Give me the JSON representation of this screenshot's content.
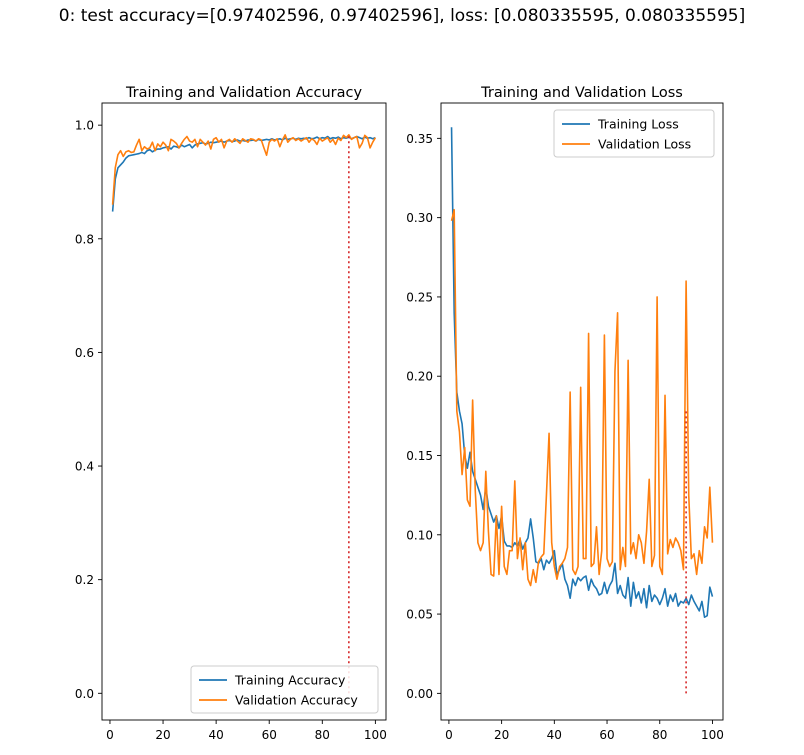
{
  "suptitle": "0: test accuracy=[0.97402596, 0.97402596], loss: [0.080335595, 0.080335595]",
  "colors": {
    "train": "#1f77b4",
    "val": "#ff7f0e",
    "marker": "#d62728"
  },
  "chart_data": [
    {
      "type": "line",
      "title": "Training and Validation Accuracy",
      "xlim": [
        -3,
        104
      ],
      "ylim": [
        -0.047,
        1.039
      ],
      "xticks": [
        0,
        20,
        40,
        60,
        80,
        100
      ],
      "xtick_labels": [
        "0",
        "20",
        "40",
        "60",
        "80",
        "100"
      ],
      "yticks": [
        0.0,
        0.2,
        0.4,
        0.6,
        0.8,
        1.0
      ],
      "ytick_labels": [
        "0.0",
        "0.2",
        "0.4",
        "0.6",
        "0.8",
        "1.0"
      ],
      "grid": false,
      "legend_position": "lower-right",
      "vline": {
        "x": 90,
        "y_from": 0.0,
        "y_to": 0.983,
        "style": "dotted"
      },
      "series": [
        {
          "name": "Training Accuracy",
          "color": "#1f77b4",
          "x": [
            1,
            2,
            3,
            4,
            5,
            6,
            7,
            8,
            9,
            10,
            11,
            12,
            13,
            14,
            15,
            16,
            17,
            18,
            19,
            20,
            21,
            22,
            23,
            24,
            25,
            26,
            27,
            28,
            29,
            30,
            31,
            32,
            33,
            34,
            35,
            36,
            37,
            38,
            39,
            40,
            41,
            42,
            43,
            44,
            45,
            46,
            47,
            48,
            49,
            50,
            51,
            52,
            53,
            54,
            55,
            56,
            57,
            58,
            59,
            60,
            61,
            62,
            63,
            64,
            65,
            66,
            67,
            68,
            69,
            70,
            71,
            72,
            73,
            74,
            75,
            76,
            77,
            78,
            79,
            80,
            81,
            82,
            83,
            84,
            85,
            86,
            87,
            88,
            89,
            90,
            91,
            92,
            93,
            94,
            95,
            96,
            97,
            98,
            99,
            100
          ],
          "values": [
            0.848,
            0.905,
            0.925,
            0.93,
            0.935,
            0.942,
            0.946,
            0.947,
            0.948,
            0.949,
            0.95,
            0.952,
            0.95,
            0.955,
            0.957,
            0.953,
            0.956,
            0.958,
            0.958,
            0.96,
            0.961,
            0.962,
            0.958,
            0.963,
            0.962,
            0.96,
            0.965,
            0.962,
            0.964,
            0.966,
            0.96,
            0.965,
            0.967,
            0.968,
            0.969,
            0.967,
            0.968,
            0.97,
            0.969,
            0.97,
            0.971,
            0.972,
            0.97,
            0.972,
            0.973,
            0.971,
            0.972,
            0.974,
            0.972,
            0.973,
            0.972,
            0.974,
            0.973,
            0.974,
            0.972,
            0.975,
            0.973,
            0.974,
            0.975,
            0.974,
            0.976,
            0.974,
            0.975,
            0.976,
            0.974,
            0.977,
            0.975,
            0.976,
            0.977,
            0.975,
            0.977,
            0.976,
            0.977,
            0.976,
            0.978,
            0.976,
            0.977,
            0.979,
            0.976,
            0.978,
            0.977,
            0.98,
            0.976,
            0.978,
            0.977,
            0.979,
            0.976,
            0.978,
            0.977,
            0.979,
            0.976,
            0.978,
            0.98,
            0.978,
            0.976,
            0.979,
            0.977,
            0.978,
            0.976,
            0.978
          ]
        },
        {
          "name": "Validation Accuracy",
          "color": "#ff7f0e",
          "x": [
            1,
            2,
            3,
            4,
            5,
            6,
            7,
            8,
            9,
            10,
            11,
            12,
            13,
            14,
            15,
            16,
            17,
            18,
            19,
            20,
            21,
            22,
            23,
            24,
            25,
            26,
            27,
            28,
            29,
            30,
            31,
            32,
            33,
            34,
            35,
            36,
            37,
            38,
            39,
            40,
            41,
            42,
            43,
            44,
            45,
            46,
            47,
            48,
            49,
            50,
            51,
            52,
            53,
            54,
            55,
            56,
            57,
            58,
            59,
            60,
            61,
            62,
            63,
            64,
            65,
            66,
            67,
            68,
            69,
            70,
            71,
            72,
            73,
            74,
            75,
            76,
            77,
            78,
            79,
            80,
            81,
            82,
            83,
            84,
            85,
            86,
            87,
            88,
            89,
            90,
            91,
            92,
            93,
            94,
            95,
            96,
            97,
            98,
            99,
            100
          ],
          "values": [
            0.86,
            0.925,
            0.948,
            0.955,
            0.945,
            0.953,
            0.955,
            0.952,
            0.953,
            0.965,
            0.975,
            0.955,
            0.962,
            0.958,
            0.96,
            0.97,
            0.955,
            0.967,
            0.962,
            0.97,
            0.965,
            0.955,
            0.975,
            0.972,
            0.968,
            0.96,
            0.968,
            0.975,
            0.98,
            0.972,
            0.97,
            0.975,
            0.962,
            0.975,
            0.97,
            0.965,
            0.972,
            0.958,
            0.975,
            0.978,
            0.97,
            0.975,
            0.96,
            0.972,
            0.975,
            0.97,
            0.976,
            0.972,
            0.968,
            0.976,
            0.973,
            0.97,
            0.976,
            0.975,
            0.972,
            0.976,
            0.974,
            0.96,
            0.947,
            0.97,
            0.975,
            0.972,
            0.976,
            0.962,
            0.974,
            0.983,
            0.97,
            0.975,
            0.978,
            0.973,
            0.976,
            0.972,
            0.975,
            0.978,
            0.97,
            0.976,
            0.973,
            0.966,
            0.977,
            0.972,
            0.975,
            0.978,
            0.97,
            0.975,
            0.966,
            0.977,
            0.973,
            0.982,
            0.978,
            0.983,
            0.975,
            0.978,
            0.98,
            0.96,
            0.968,
            0.982,
            0.978,
            0.96,
            0.97,
            0.978
          ]
        }
      ]
    },
    {
      "type": "line",
      "title": "Training and Validation Loss",
      "xlim": [
        -3,
        104
      ],
      "ylim": [
        -0.0168,
        0.3723
      ],
      "xticks": [
        0,
        20,
        40,
        60,
        80,
        100
      ],
      "xtick_labels": [
        "0",
        "20",
        "40",
        "60",
        "80",
        "100"
      ],
      "yticks": [
        0.0,
        0.05,
        0.1,
        0.15,
        0.2,
        0.25,
        0.3,
        0.35
      ],
      "ytick_labels": [
        "0.00",
        "0.05",
        "0.10",
        "0.15",
        "0.20",
        "0.25",
        "0.30",
        "0.35"
      ],
      "grid": false,
      "legend_position": "upper-right",
      "vline": {
        "x": 90,
        "y_from": 0.0,
        "y_to": 0.178,
        "style": "dotted"
      },
      "series": [
        {
          "name": "Training Loss",
          "color": "#1f77b4",
          "x": [
            1,
            2,
            3,
            4,
            5,
            6,
            7,
            8,
            9,
            10,
            11,
            12,
            13,
            14,
            15,
            16,
            17,
            18,
            19,
            20,
            21,
            22,
            23,
            24,
            25,
            26,
            27,
            28,
            29,
            30,
            31,
            32,
            33,
            34,
            35,
            36,
            37,
            38,
            39,
            40,
            41,
            42,
            43,
            44,
            45,
            46,
            47,
            48,
            49,
            50,
            51,
            52,
            53,
            54,
            55,
            56,
            57,
            58,
            59,
            60,
            61,
            62,
            63,
            64,
            65,
            66,
            67,
            68,
            69,
            70,
            71,
            72,
            73,
            74,
            75,
            76,
            77,
            78,
            79,
            80,
            81,
            82,
            83,
            84,
            85,
            86,
            87,
            88,
            89,
            90,
            91,
            92,
            93,
            94,
            95,
            96,
            97,
            98,
            99,
            100
          ],
          "values": [
            0.357,
            0.24,
            0.19,
            0.178,
            0.17,
            0.15,
            0.142,
            0.152,
            0.14,
            0.135,
            0.13,
            0.125,
            0.116,
            0.13,
            0.118,
            0.113,
            0.108,
            0.112,
            0.104,
            0.112,
            0.096,
            0.093,
            0.093,
            0.092,
            0.095,
            0.093,
            0.097,
            0.091,
            0.095,
            0.098,
            0.11,
            0.098,
            0.083,
            0.082,
            0.085,
            0.078,
            0.084,
            0.082,
            0.085,
            0.09,
            0.075,
            0.078,
            0.082,
            0.072,
            0.068,
            0.06,
            0.072,
            0.068,
            0.073,
            0.071,
            0.073,
            0.074,
            0.065,
            0.072,
            0.068,
            0.066,
            0.062,
            0.063,
            0.07,
            0.063,
            0.068,
            0.071,
            0.082,
            0.063,
            0.068,
            0.062,
            0.06,
            0.073,
            0.055,
            0.07,
            0.06,
            0.064,
            0.057,
            0.066,
            0.054,
            0.068,
            0.058,
            0.062,
            0.06,
            0.056,
            0.06,
            0.066,
            0.055,
            0.062,
            0.058,
            0.063,
            0.055,
            0.058,
            0.057,
            0.06,
            0.056,
            0.062,
            0.058,
            0.055,
            0.052,
            0.058,
            0.048,
            0.049,
            0.067,
            0.061
          ]
        },
        {
          "name": "Validation Loss",
          "color": "#ff7f0e",
          "x": [
            1,
            2,
            3,
            4,
            5,
            6,
            7,
            8,
            9,
            10,
            11,
            12,
            13,
            14,
            15,
            16,
            17,
            18,
            19,
            20,
            21,
            22,
            23,
            24,
            25,
            26,
            27,
            28,
            29,
            30,
            31,
            32,
            33,
            34,
            35,
            36,
            37,
            38,
            39,
            40,
            41,
            42,
            43,
            44,
            45,
            46,
            47,
            48,
            49,
            50,
            51,
            52,
            53,
            54,
            55,
            56,
            57,
            58,
            59,
            60,
            61,
            62,
            63,
            64,
            65,
            66,
            67,
            68,
            69,
            70,
            71,
            72,
            73,
            74,
            75,
            76,
            77,
            78,
            79,
            80,
            81,
            82,
            83,
            84,
            85,
            86,
            87,
            88,
            89,
            90,
            91,
            92,
            93,
            94,
            95,
            96,
            97,
            98,
            99,
            100
          ],
          "values": [
            0.298,
            0.305,
            0.178,
            0.165,
            0.138,
            0.155,
            0.122,
            0.118,
            0.185,
            0.128,
            0.095,
            0.09,
            0.095,
            0.14,
            0.102,
            0.075,
            0.074,
            0.112,
            0.075,
            0.118,
            0.08,
            0.075,
            0.09,
            0.09,
            0.134,
            0.085,
            0.098,
            0.078,
            0.095,
            0.072,
            0.068,
            0.078,
            0.07,
            0.083,
            0.086,
            0.088,
            0.125,
            0.164,
            0.095,
            0.08,
            0.072,
            0.08,
            0.082,
            0.085,
            0.092,
            0.19,
            0.078,
            0.075,
            0.08,
            0.193,
            0.085,
            0.085,
            0.227,
            0.08,
            0.082,
            0.105,
            0.075,
            0.09,
            0.226,
            0.085,
            0.08,
            0.083,
            0.203,
            0.24,
            0.078,
            0.092,
            0.08,
            0.21,
            0.088,
            0.095,
            0.085,
            0.1,
            0.095,
            0.082,
            0.102,
            0.135,
            0.08,
            0.087,
            0.25,
            0.08,
            0.075,
            0.188,
            0.088,
            0.097,
            0.092,
            0.098,
            0.095,
            0.09,
            0.078,
            0.26,
            0.125,
            0.085,
            0.088,
            0.075,
            0.09,
            0.082,
            0.105,
            0.098,
            0.13,
            0.095
          ]
        }
      ]
    }
  ]
}
